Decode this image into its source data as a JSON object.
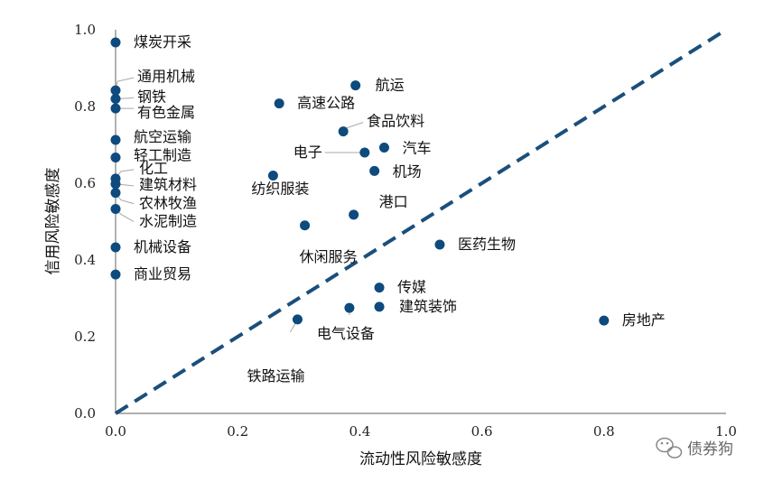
{
  "chart_data": {
    "type": "scatter",
    "xlabel": "流动性风险敏感度",
    "ylabel": "信用风险敏感度",
    "xlim": [
      0,
      1
    ],
    "ylim": [
      0,
      1
    ],
    "x_ticks": [
      "0.0",
      "0.2",
      "0.4",
      "0.6",
      "0.8",
      "1.0"
    ],
    "y_ticks": [
      "0.0",
      "0.2",
      "0.4",
      "0.6",
      "0.8",
      "1.0"
    ],
    "reference_line": {
      "style": "dashed",
      "from": [
        0,
        0
      ],
      "to": [
        1,
        1
      ],
      "color": "#1a4f7c"
    },
    "point_color": "#0e4a7e",
    "grid": false,
    "points": [
      {
        "label": "煤炭开采",
        "x": 0.0,
        "y": 0.967
      },
      {
        "label": "通用机械",
        "x": 0.0,
        "y": 0.842
      },
      {
        "label": "钢铁",
        "x": 0.0,
        "y": 0.82
      },
      {
        "label": "有色金属",
        "x": 0.0,
        "y": 0.795
      },
      {
        "label": "航空运输",
        "x": 0.0,
        "y": 0.713
      },
      {
        "label": "轻工制造",
        "x": 0.0,
        "y": 0.667
      },
      {
        "label": "化工",
        "x": 0.0,
        "y": 0.612
      },
      {
        "label": "建筑材料",
        "x": 0.0,
        "y": 0.598
      },
      {
        "label": "农林牧渔",
        "x": 0.0,
        "y": 0.575
      },
      {
        "label": "水泥制造",
        "x": 0.0,
        "y": 0.533
      },
      {
        "label": "机械设备",
        "x": 0.0,
        "y": 0.433
      },
      {
        "label": "商业贸易",
        "x": 0.0,
        "y": 0.362
      },
      {
        "label": "航运",
        "x": 0.393,
        "y": 0.855
      },
      {
        "label": "高速公路",
        "x": 0.268,
        "y": 0.808
      },
      {
        "label": "食品饮料",
        "x": 0.373,
        "y": 0.735
      },
      {
        "label": "电子",
        "x": 0.408,
        "y": 0.68
      },
      {
        "label": "汽车",
        "x": 0.44,
        "y": 0.693
      },
      {
        "label": "机场",
        "x": 0.424,
        "y": 0.632
      },
      {
        "label": "纺织服装",
        "x": 0.258,
        "y": 0.62
      },
      {
        "label": "港口",
        "x": 0.39,
        "y": 0.518
      },
      {
        "label": "休闲服务",
        "x": 0.31,
        "y": 0.49
      },
      {
        "label": "医药生物",
        "x": 0.531,
        "y": 0.44
      },
      {
        "label": "传媒",
        "x": 0.432,
        "y": 0.328
      },
      {
        "label": "建筑装饰",
        "x": 0.432,
        "y": 0.278
      },
      {
        "label": "电气设备",
        "x": 0.383,
        "y": 0.275
      },
      {
        "label": "铁路运输",
        "x": 0.298,
        "y": 0.245
      },
      {
        "label": "房地产",
        "x": 0.8,
        "y": 0.242
      }
    ]
  },
  "watermark": {
    "text": "债券狗",
    "icon": "wechat-icon"
  }
}
